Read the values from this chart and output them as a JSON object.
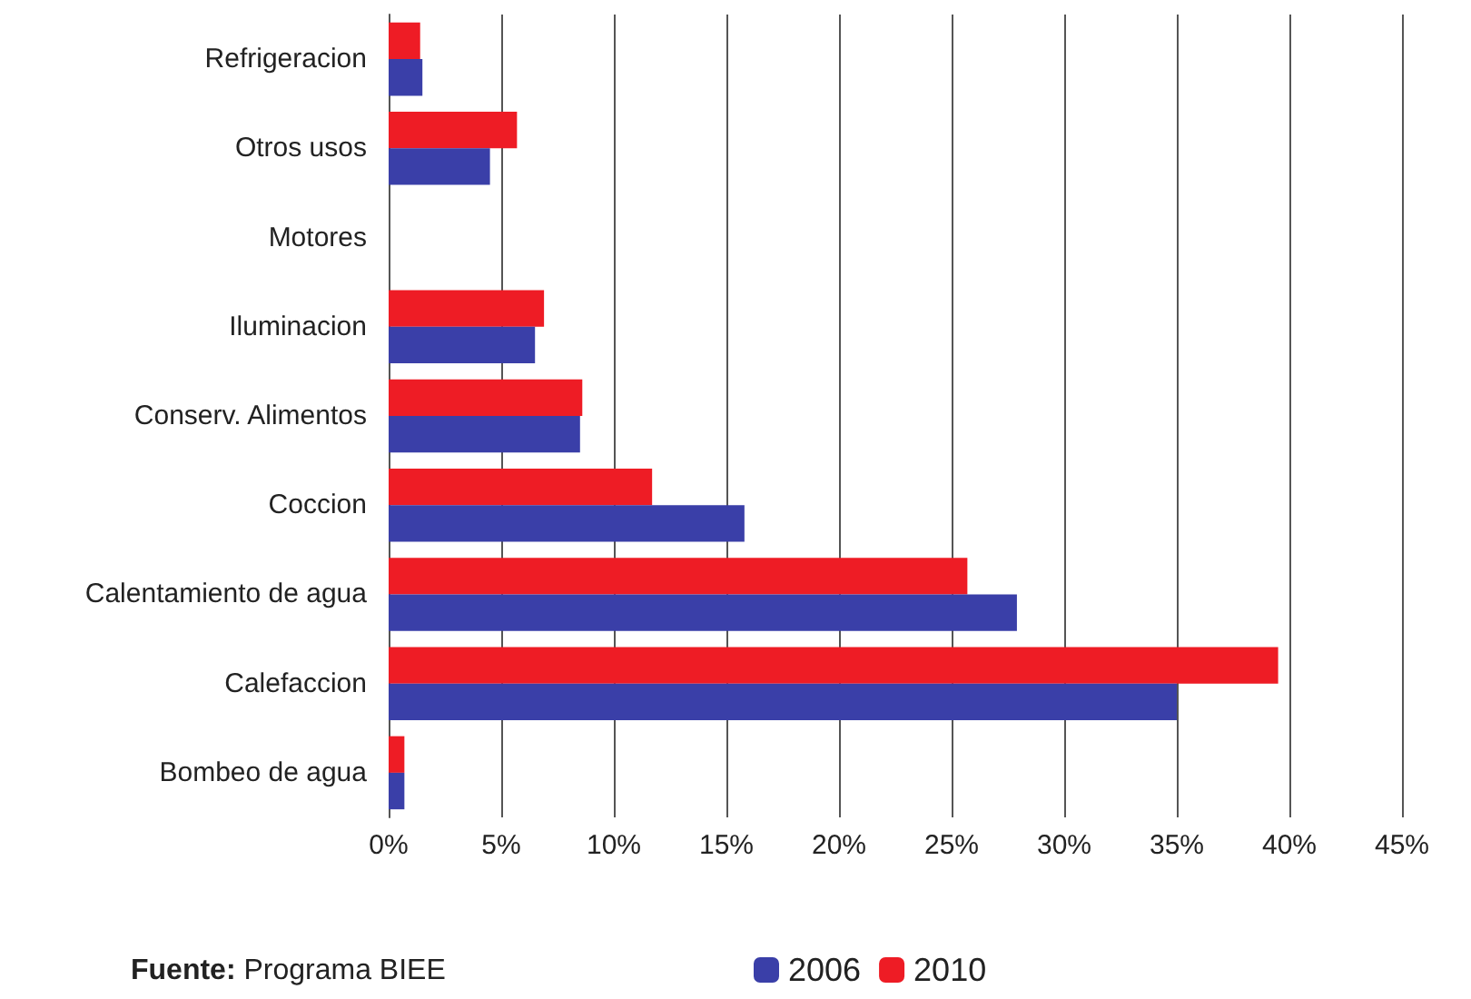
{
  "chart_data": {
    "type": "bar",
    "orientation": "horizontal",
    "categories": [
      "Refrigeracion",
      "Otros usos",
      "Motores",
      "Iluminacion",
      "Conserv. Alimentos",
      "Coccion",
      "Calentamiento de agua",
      "Calefaccion",
      "Bombeo de agua"
    ],
    "series": [
      {
        "name": "2006",
        "color": "#3a3fa8",
        "values": [
          1.5,
          4.5,
          0,
          6.5,
          8.5,
          15.8,
          27.9,
          35,
          0.7
        ]
      },
      {
        "name": "2010",
        "color": "#ee1c25",
        "values": [
          1.4,
          5.7,
          0,
          6.9,
          8.6,
          11.7,
          25.7,
          39.5,
          0.7
        ]
      }
    ],
    "xlim": [
      0,
      45
    ],
    "xticks": [
      {
        "value": 0,
        "label": "0%"
      },
      {
        "value": 5,
        "label": "5%"
      },
      {
        "value": 10,
        "label": "10%"
      },
      {
        "value": 15,
        "label": "15%"
      },
      {
        "value": 20,
        "label": "20%"
      },
      {
        "value": 25,
        "label": "25%"
      },
      {
        "value": 30,
        "label": "30%"
      },
      {
        "value": 35,
        "label": "35%"
      },
      {
        "value": 40,
        "label": "40%"
      },
      {
        "value": 45,
        "label": "45%"
      }
    ],
    "grid": "x",
    "legend": "bottom",
    "annotations": [
      "Fuente: Programa BIEE"
    ]
  }
}
